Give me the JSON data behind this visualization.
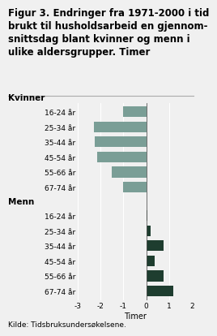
{
  "title_lines": [
    "Figur 3. Endringer fra 1971-2000 i tid",
    "brukt til husholdsarbeid en gjennom-",
    "snittsdag blant kvinner og menn i",
    "ulike aldersgrupper. Timer"
  ],
  "xlabel": "Timer",
  "source": "Kilde: Tidsbruksundersøkelsene.",
  "categories_kvinner": [
    "16-24 år",
    "25-34 år",
    "35-44 år",
    "45-54 år",
    "55-66 år",
    "67-74 år"
  ],
  "categories_menn": [
    "16-24 år",
    "25-34 år",
    "35-44 år",
    "45-54 år",
    "55-66 år",
    "67-74 år"
  ],
  "values_kvinner": [
    -1.0,
    -2.3,
    -2.25,
    -2.15,
    -1.5,
    -1.0
  ],
  "values_menn": [
    0.05,
    0.2,
    0.75,
    0.35,
    0.75,
    1.2
  ],
  "color_kvinner": "#7a9e96",
  "color_menn": "#1e3d2f",
  "xlim": [
    -3,
    2
  ],
  "xticks": [
    -3,
    -2,
    -1,
    0,
    1,
    2
  ],
  "background_color": "#f0f0f0",
  "grid_color": "#ffffff",
  "title_fontsize": 8.5,
  "section_fontsize": 7.5,
  "label_fontsize": 7,
  "tick_fontsize": 6.5,
  "source_fontsize": 6.5
}
